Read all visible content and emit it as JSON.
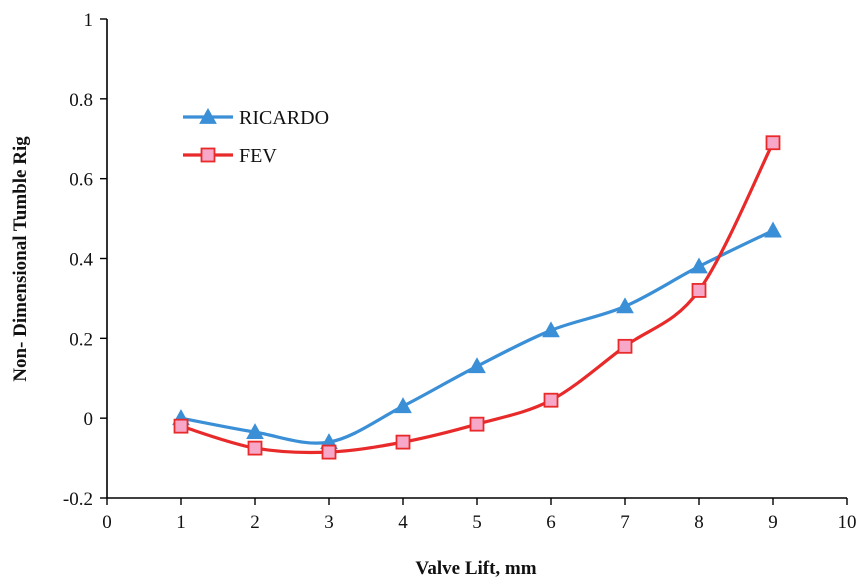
{
  "chart_data": {
    "type": "line",
    "xlabel": "Valve Lift, mm",
    "ylabel": "Non- Dimensional  Tumble  Rig",
    "xlim": [
      0,
      10
    ],
    "ylim": [
      -0.2,
      1
    ],
    "xticks": [
      "0",
      "1",
      "2",
      "3",
      "4",
      "5",
      "6",
      "7",
      "8",
      "9",
      "10"
    ],
    "yticks": [
      "-0.2",
      "0",
      "0.2",
      "0.4",
      "0.6",
      "0.8",
      "1"
    ],
    "grid": false,
    "legend": "upper-left",
    "series": [
      {
        "name": "RICARDO",
        "color": "#3a8fd6",
        "marker": "triangle",
        "x": [
          1,
          2,
          3,
          4,
          5,
          6,
          7,
          8,
          9
        ],
        "y": [
          0.0,
          -0.035,
          -0.06,
          0.03,
          0.13,
          0.22,
          0.28,
          0.38,
          0.47
        ]
      },
      {
        "name": "FEV",
        "color": "#e82a2a",
        "marker": "square",
        "marker_fill": "#f7a8c8",
        "x": [
          1,
          2,
          3,
          4,
          5,
          6,
          7,
          8,
          9
        ],
        "y": [
          -0.02,
          -0.075,
          -0.085,
          -0.06,
          -0.015,
          0.045,
          0.18,
          0.32,
          0.69
        ]
      }
    ]
  }
}
